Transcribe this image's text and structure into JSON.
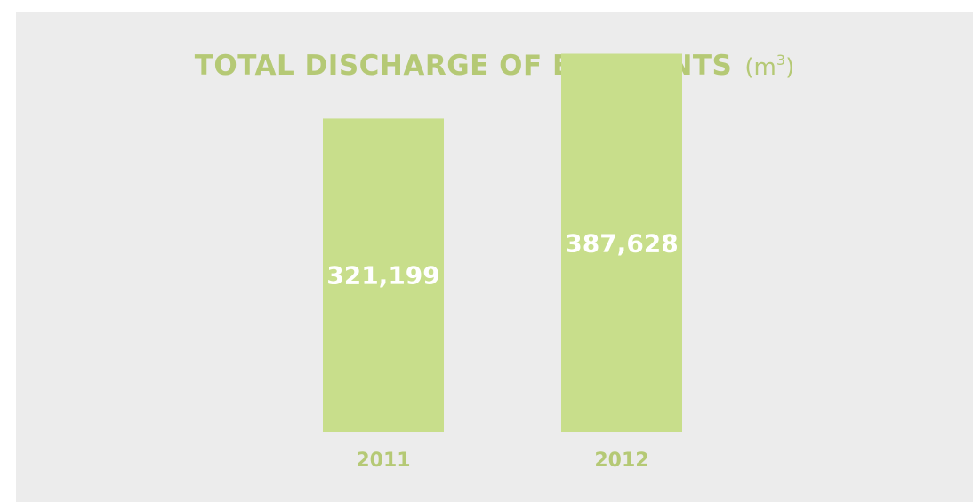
{
  "chart_data": {
    "type": "bar",
    "title": "TOTAL DISCHARGE OF EFFLUENTS",
    "unit_base": "(m",
    "unit_sup": "3",
    "unit_close": ")",
    "xlabel": "",
    "ylabel": "",
    "categories": [
      "2011",
      "2012"
    ],
    "values": [
      321199,
      387628
    ],
    "value_labels": [
      "321,199",
      "387,628"
    ],
    "ylim": [
      0,
      430000
    ],
    "grid": false,
    "legend": "none",
    "colors": {
      "bar": "#c8de8b",
      "title": "#b5c975",
      "category_label": "#b5c975",
      "value_label": "#ffffff",
      "background": "#ececec"
    }
  }
}
